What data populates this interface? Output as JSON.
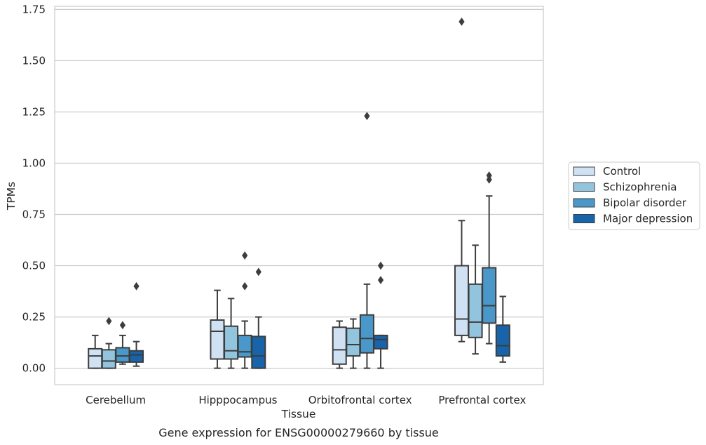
{
  "chart_data": {
    "type": "box",
    "title": "",
    "caption": "Gene expression for ENSG00000279660 by tissue",
    "xlabel": "Tissue",
    "ylabel": "TPMs",
    "ylim": [
      -0.08,
      1.765
    ],
    "yticks": [
      "0.00",
      "0.25",
      "0.50",
      "0.75",
      "1.00",
      "1.25",
      "1.50",
      "1.75"
    ],
    "ytick_values": [
      0,
      0.25,
      0.5,
      0.75,
      1.0,
      1.25,
      1.5,
      1.75
    ],
    "grid": true,
    "legend_position": "right",
    "categories": [
      "Cerebellum",
      "Hipppocampus",
      "Orbitofrontal cortex",
      "Prefrontal cortex"
    ],
    "series": [
      {
        "name": "Control",
        "color": "#cfe1f2",
        "boxes": [
          {
            "whislo": 0.0,
            "q1": 0.0,
            "med": 0.06,
            "q3": 0.095,
            "whishi": 0.16,
            "fliers": []
          },
          {
            "whislo": 0.0,
            "q1": 0.045,
            "med": 0.18,
            "q3": 0.235,
            "whishi": 0.38,
            "fliers": []
          },
          {
            "whislo": 0.0,
            "q1": 0.02,
            "med": 0.09,
            "q3": 0.2,
            "whishi": 0.23,
            "fliers": []
          },
          {
            "whislo": 0.13,
            "q1": 0.16,
            "med": 0.24,
            "q3": 0.5,
            "whishi": 0.72,
            "fliers": [
              1.69
            ]
          }
        ]
      },
      {
        "name": "Schizophrenia",
        "color": "#93c4de",
        "boxes": [
          {
            "whislo": 0.0,
            "q1": 0.0,
            "med": 0.035,
            "q3": 0.09,
            "whishi": 0.12,
            "fliers": [
              0.23
            ]
          },
          {
            "whislo": 0.0,
            "q1": 0.045,
            "med": 0.085,
            "q3": 0.205,
            "whishi": 0.34,
            "fliers": []
          },
          {
            "whislo": 0.0,
            "q1": 0.06,
            "med": 0.115,
            "q3": 0.195,
            "whishi": 0.24,
            "fliers": []
          },
          {
            "whislo": 0.07,
            "q1": 0.15,
            "med": 0.225,
            "q3": 0.41,
            "whishi": 0.6,
            "fliers": []
          }
        ]
      },
      {
        "name": "Bipolar disorder",
        "color": "#4a98c9",
        "boxes": [
          {
            "whislo": 0.02,
            "q1": 0.03,
            "med": 0.06,
            "q3": 0.1,
            "whishi": 0.16,
            "fliers": [
              0.21
            ]
          },
          {
            "whislo": 0.0,
            "q1": 0.055,
            "med": 0.08,
            "q3": 0.16,
            "whishi": 0.23,
            "fliers": [
              0.4,
              0.55
            ]
          },
          {
            "whislo": 0.0,
            "q1": 0.075,
            "med": 0.145,
            "q3": 0.26,
            "whishi": 0.41,
            "fliers": [
              1.23
            ]
          },
          {
            "whislo": 0.12,
            "q1": 0.22,
            "med": 0.305,
            "q3": 0.49,
            "whishi": 0.84,
            "fliers": [
              0.92,
              0.94
            ]
          }
        ]
      },
      {
        "name": "Major depression",
        "color": "#1764ab",
        "boxes": [
          {
            "whislo": 0.01,
            "q1": 0.03,
            "med": 0.065,
            "q3": 0.085,
            "whishi": 0.13,
            "fliers": [
              0.4
            ]
          },
          {
            "whislo": 0.0,
            "q1": 0.0,
            "med": 0.06,
            "q3": 0.155,
            "whishi": 0.25,
            "fliers": [
              0.47
            ]
          },
          {
            "whislo": 0.0,
            "q1": 0.095,
            "med": 0.14,
            "q3": 0.16,
            "whishi": 0.16,
            "fliers": [
              0.43,
              0.5
            ]
          },
          {
            "whislo": 0.03,
            "q1": 0.06,
            "med": 0.11,
            "q3": 0.21,
            "whishi": 0.35,
            "fliers": []
          }
        ]
      }
    ]
  }
}
